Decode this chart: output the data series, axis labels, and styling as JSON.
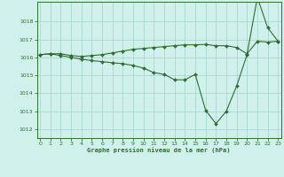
{
  "title": "Graphe pression niveau de la mer (hPa)",
  "background_color": "#d0f0ec",
  "grid_color": "#a8d8d0",
  "line_color": "#2d6e2d",
  "xlim": [
    -0.3,
    23.3
  ],
  "ylim": [
    1011.5,
    1019.1
  ],
  "yticks": [
    1012,
    1013,
    1014,
    1015,
    1016,
    1017,
    1018
  ],
  "xticks": [
    0,
    1,
    2,
    3,
    4,
    5,
    6,
    7,
    8,
    9,
    10,
    11,
    12,
    13,
    14,
    15,
    16,
    17,
    18,
    19,
    20,
    21,
    22,
    23
  ],
  "series1_x": [
    0,
    1,
    2,
    3,
    4,
    5,
    6,
    7,
    8,
    9,
    10,
    11,
    12,
    13,
    14,
    15,
    16,
    17,
    18,
    19,
    20,
    21,
    22,
    23
  ],
  "series1_y": [
    1016.15,
    1016.2,
    1016.2,
    1016.1,
    1016.05,
    1016.1,
    1016.15,
    1016.25,
    1016.35,
    1016.45,
    1016.5,
    1016.55,
    1016.6,
    1016.65,
    1016.7,
    1016.7,
    1016.72,
    1016.65,
    1016.65,
    1016.55,
    1016.2,
    1016.9,
    1016.85,
    1016.9
  ],
  "series2_x": [
    0,
    1,
    2,
    3,
    4,
    5,
    6,
    7,
    8,
    9,
    10,
    11,
    12,
    13,
    14,
    15,
    16,
    17,
    18,
    19,
    20,
    21,
    22,
    23
  ],
  "series2_y": [
    1016.15,
    1016.2,
    1016.1,
    1016.0,
    1015.9,
    1015.82,
    1015.76,
    1015.7,
    1015.65,
    1015.55,
    1015.4,
    1015.15,
    1015.05,
    1014.75,
    1014.75,
    1015.05,
    1013.05,
    1012.3,
    1013.0,
    1014.4,
    1016.15,
    1019.35,
    1017.65,
    1016.9
  ]
}
